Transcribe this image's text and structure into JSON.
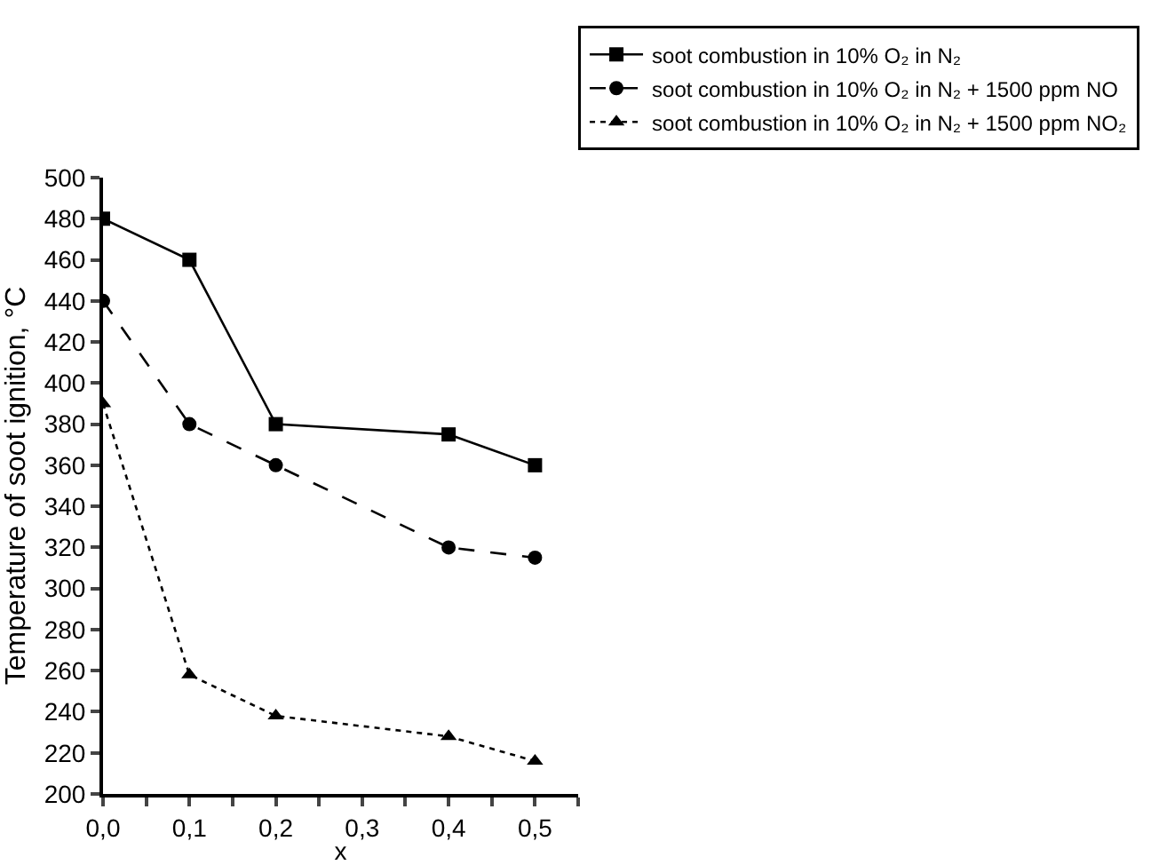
{
  "chart_data": {
    "type": "line",
    "xlabel": "x",
    "ylabel": "Temperature of soot ignition, °C",
    "x": [
      0,
      0.1,
      0.2,
      0.4,
      0.5
    ],
    "series": [
      {
        "name": "soot combustion in 10% O₂ in N₂",
        "color": "#000000",
        "marker": "square",
        "line_style": "solid",
        "values": [
          480,
          460,
          380,
          375,
          360
        ]
      },
      {
        "name": "soot combustion in 10% O₂ in N₂ + 1500 ppm NO",
        "color": "#000000",
        "marker": "circle",
        "line_style": "dashed",
        "values": [
          440,
          380,
          360,
          320,
          315
        ]
      },
      {
        "name": "soot combustion in 10% O₂ in N₂ + 1500 ppm NO₂",
        "color": "#000000",
        "marker": "triangle",
        "line_style": "dotted",
        "values": [
          390,
          258,
          238,
          228,
          216
        ]
      }
    ],
    "xlim": [
      0,
      0.55
    ],
    "xticks": [
      {
        "value": 0,
        "label": "0,0"
      },
      {
        "value": 0.05,
        "label": null
      },
      {
        "value": 0.1,
        "label": "0,1"
      },
      {
        "value": 0.15,
        "label": null
      },
      {
        "value": 0.2,
        "label": "0,2"
      },
      {
        "value": 0.25,
        "label": null
      },
      {
        "value": 0.3,
        "label": "0,3"
      },
      {
        "value": 0.35,
        "label": null
      },
      {
        "value": 0.4,
        "label": "0,4"
      },
      {
        "value": 0.45,
        "label": null
      },
      {
        "value": 0.5,
        "label": "0,5"
      },
      {
        "value": 0.55,
        "label": null
      }
    ],
    "ylim": [
      200,
      500
    ],
    "yticks": [
      200,
      220,
      240,
      260,
      280,
      300,
      320,
      340,
      360,
      380,
      400,
      420,
      440,
      460,
      480,
      500
    ],
    "grid": false,
    "legend": "top right"
  }
}
